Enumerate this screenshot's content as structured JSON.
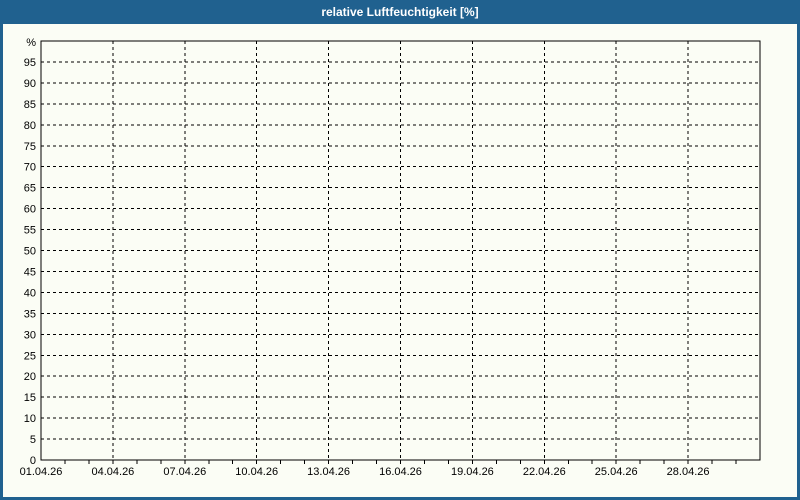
{
  "window": {
    "title": "relative Luftfeuchtigkeit [%]"
  },
  "colors": {
    "frame_blue": "#20618f",
    "background": "#fbfdf5",
    "grid": "#000000",
    "text": "#000000",
    "title_text": "#ffffff"
  },
  "chart_data": {
    "type": "line",
    "title": "relative Luftfeuchtigkeit [%]",
    "xlabel": "",
    "ylabel": "%",
    "y_unit_label": "%",
    "ylim": [
      0,
      100
    ],
    "y_ticks": [
      0,
      5,
      10,
      15,
      20,
      25,
      30,
      35,
      40,
      45,
      50,
      55,
      60,
      65,
      70,
      75,
      80,
      85,
      90,
      95
    ],
    "x_tick_labels": [
      "01.04.26",
      "04.04.26",
      "07.04.26",
      "10.04.26",
      "13.04.26",
      "16.04.26",
      "19.04.26",
      "22.04.26",
      "25.04.26",
      "28.04.26"
    ],
    "x_total_days": 30,
    "x_label_step_days": 3,
    "x_minor_tick_step_days": 1,
    "grid": true,
    "grid_style": "dashed",
    "legend": null,
    "series": []
  }
}
